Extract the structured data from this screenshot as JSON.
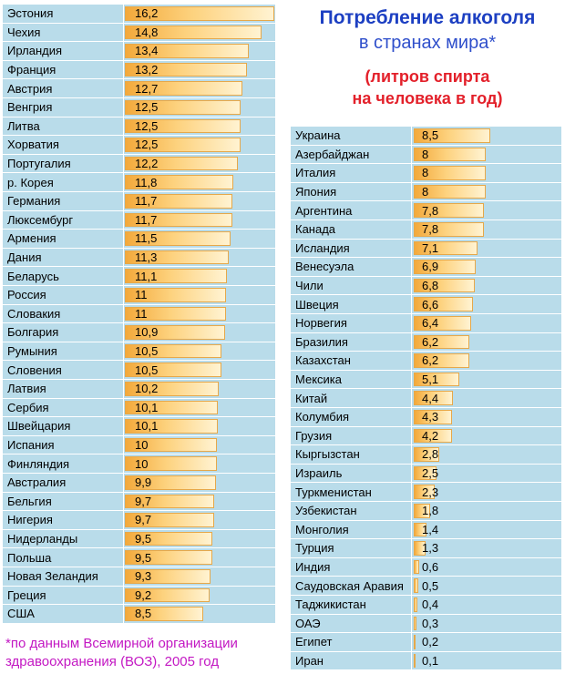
{
  "title": {
    "line1": "Потребление алкоголя",
    "line2": "в странах мира*",
    "line3": "(литров спирта",
    "line4": "на человека в год)"
  },
  "footnote": {
    "line1": "*по данным Всемирной организации",
    "line2": "здравоохранения (ВОЗ), 2005 год"
  },
  "colors": {
    "bar": "#f6b24a",
    "background": "#b9dcea",
    "title": "#1c3fc2",
    "subtitle": "#e3202a",
    "note": "#c318c3"
  },
  "chart_data": {
    "type": "bar",
    "title": "Потребление алкоголя в странах мира*",
    "subtitle": "(литров спирта на человека в год)",
    "series": [
      {
        "categories": [
          "Эстония",
          "Чехия",
          "Ирландия",
          "Франция",
          "Австрия",
          "Венгрия",
          "Литва",
          "Хорватия",
          "Португалия",
          "р. Корея",
          "Германия",
          "Люксембург",
          "Армения",
          "Дания",
          "Беларусь",
          "Россия",
          "Словакия",
          "Болгария",
          "Румыния",
          "Словения",
          "Латвия",
          "Сербия",
          "Швейцария",
          "Испания",
          "Финляндия",
          "Австралия",
          "Бельгия",
          "Нигерия",
          "Нидерланды",
          "Польша",
          "Новая Зеландия",
          "Греция",
          "США"
        ],
        "labels": [
          "16,2",
          "14,8",
          "13,4",
          "13,2",
          "12,7",
          "12,5",
          "12,5",
          "12,5",
          "12,2",
          "11,8",
          "11,7",
          "11,7",
          "11,5",
          "11,3",
          "11,1",
          "11",
          "11",
          "10,9",
          "10,5",
          "10,5",
          "10,2",
          "10,1",
          "10,1",
          "10",
          "10",
          "9,9",
          "9,7",
          "9,7",
          "9,5",
          "9,5",
          "9,3",
          "9,2",
          "8,5"
        ],
        "values": [
          16.2,
          14.8,
          13.4,
          13.2,
          12.7,
          12.5,
          12.5,
          12.5,
          12.2,
          11.8,
          11.7,
          11.7,
          11.5,
          11.3,
          11.1,
          11,
          11,
          10.9,
          10.5,
          10.5,
          10.2,
          10.1,
          10.1,
          10,
          10,
          9.9,
          9.7,
          9.7,
          9.5,
          9.5,
          9.3,
          9.2,
          8.5
        ]
      },
      {
        "categories": [
          "Украина",
          "Азербайджан",
          "Италия",
          "Япония",
          "Аргентина",
          "Канада",
          "Исландия",
          "Венесуэла",
          "Чили",
          "Швеция",
          "Норвегия",
          "Бразилия",
          "Казахстан",
          "Мексика",
          "Китай",
          "Колумбия",
          "Грузия",
          "Кыргызстан",
          "Израиль",
          "Туркменистан",
          "Узбекистан",
          "Монголия",
          "Турция",
          "Индия",
          "Саудовская Аравия",
          "Таджикистан",
          "ОАЭ",
          "Египет",
          "Иран"
        ],
        "labels": [
          "8,5",
          "8",
          "8",
          "8",
          "7,8",
          "7,8",
          "7,1",
          "6,9",
          "6,8",
          "6,6",
          "6,4",
          "6,2",
          "6,2",
          "5,1",
          "4,4",
          "4,3",
          "4,2",
          "2,8",
          "2,5",
          "2,3",
          "1,8",
          "1,4",
          "1,3",
          "0,6",
          "0,5",
          "0,4",
          "0,3",
          "0,2",
          "0,1"
        ],
        "values": [
          8.5,
          8,
          8,
          8,
          7.8,
          7.8,
          7.1,
          6.9,
          6.8,
          6.6,
          6.4,
          6.2,
          6.2,
          5.1,
          4.4,
          4.3,
          4.2,
          2.8,
          2.5,
          2.3,
          1.8,
          1.4,
          1.3,
          0.6,
          0.5,
          0.4,
          0.3,
          0.2,
          0.1
        ]
      }
    ]
  }
}
